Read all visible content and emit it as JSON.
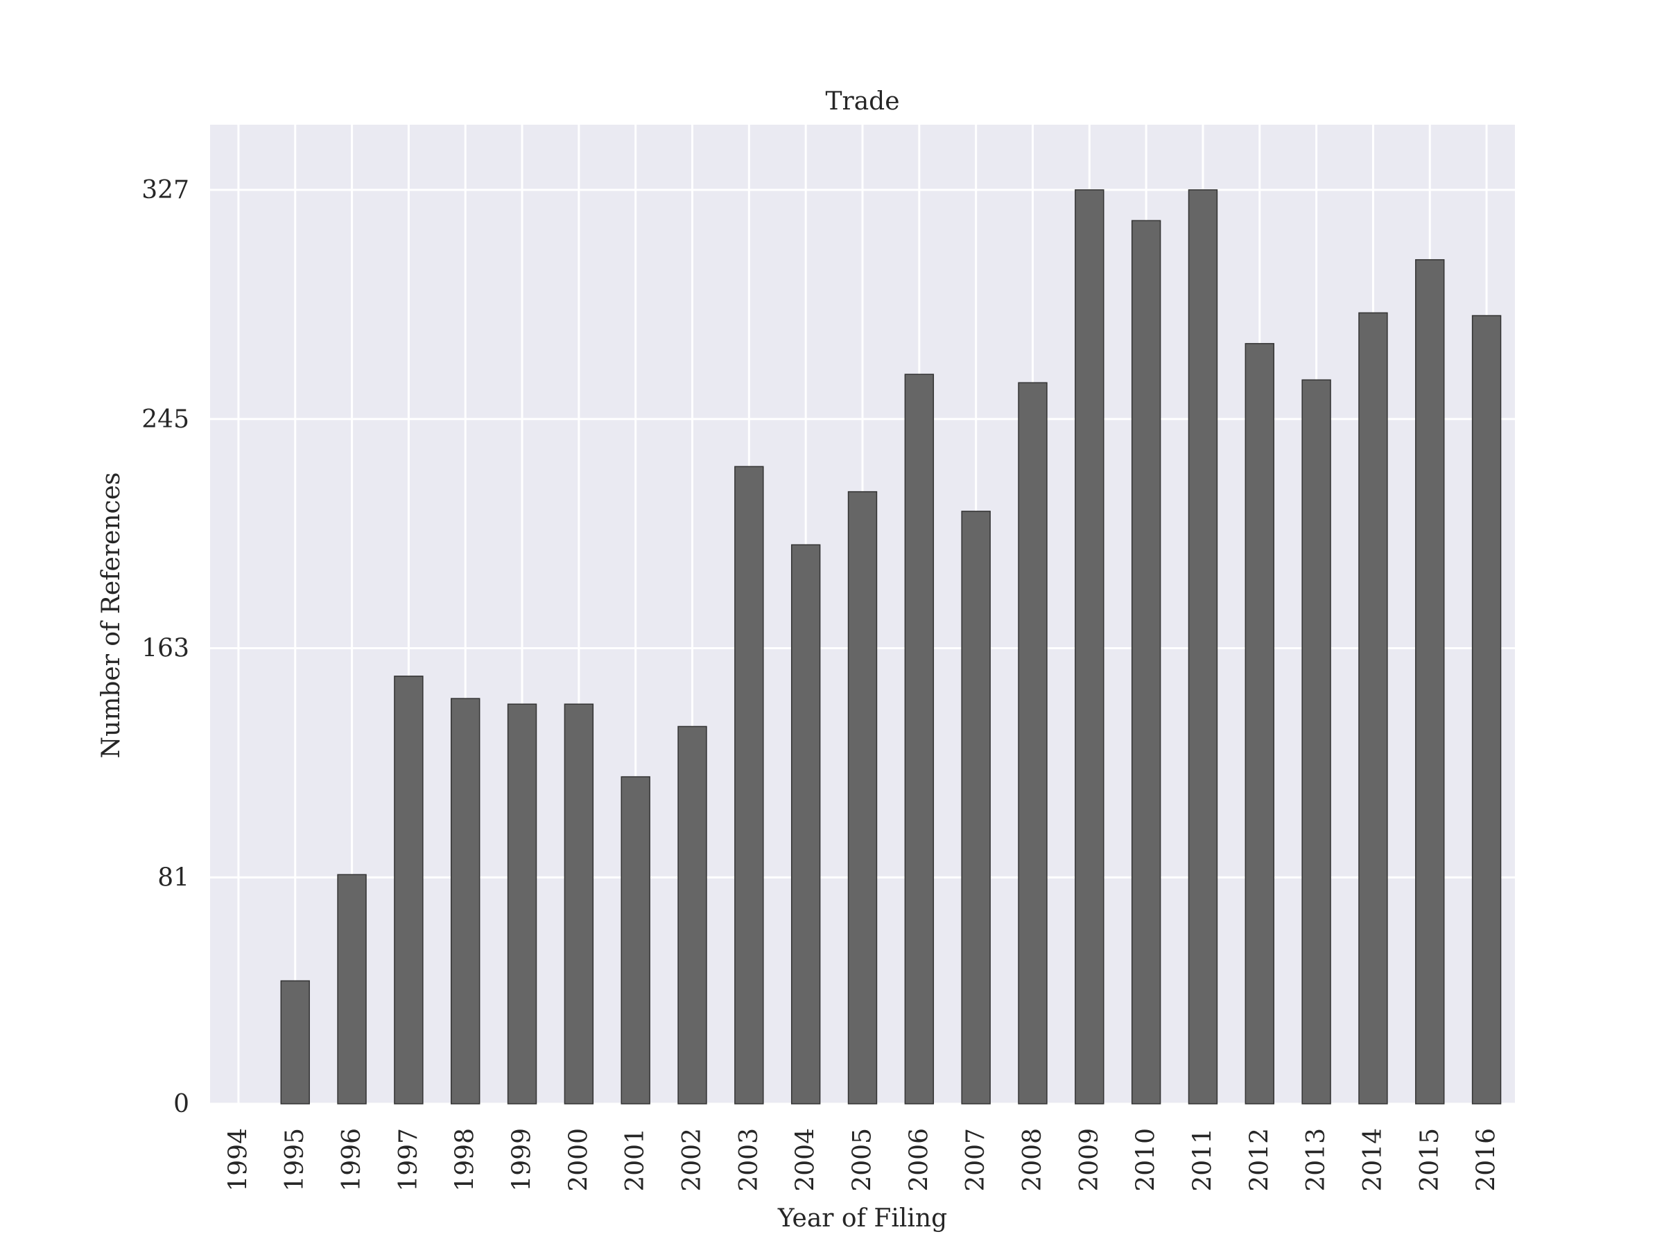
{
  "chart_data": {
    "type": "bar",
    "title": "Trade",
    "xlabel": "Year of Filing",
    "ylabel": "Number of References",
    "categories": [
      "1994",
      "1995",
      "1996",
      "1997",
      "1998",
      "1999",
      "2000",
      "2001",
      "2002",
      "2003",
      "2004",
      "2005",
      "2006",
      "2007",
      "2008",
      "2009",
      "2010",
      "2011",
      "2012",
      "2013",
      "2014",
      "2015",
      "2016"
    ],
    "values": [
      0,
      44,
      82,
      153,
      145,
      143,
      143,
      117,
      135,
      228,
      200,
      219,
      261,
      212,
      258,
      327,
      316,
      327,
      272,
      259,
      283,
      302,
      282
    ],
    "yticks": [
      0,
      81,
      163,
      245,
      327
    ],
    "ylim": [
      0,
      350
    ],
    "grid": true,
    "colors": {
      "bar": "#666666",
      "bar_edge": "#333333",
      "plot_background": "#eaeaf2",
      "grid": "#ffffff"
    }
  }
}
